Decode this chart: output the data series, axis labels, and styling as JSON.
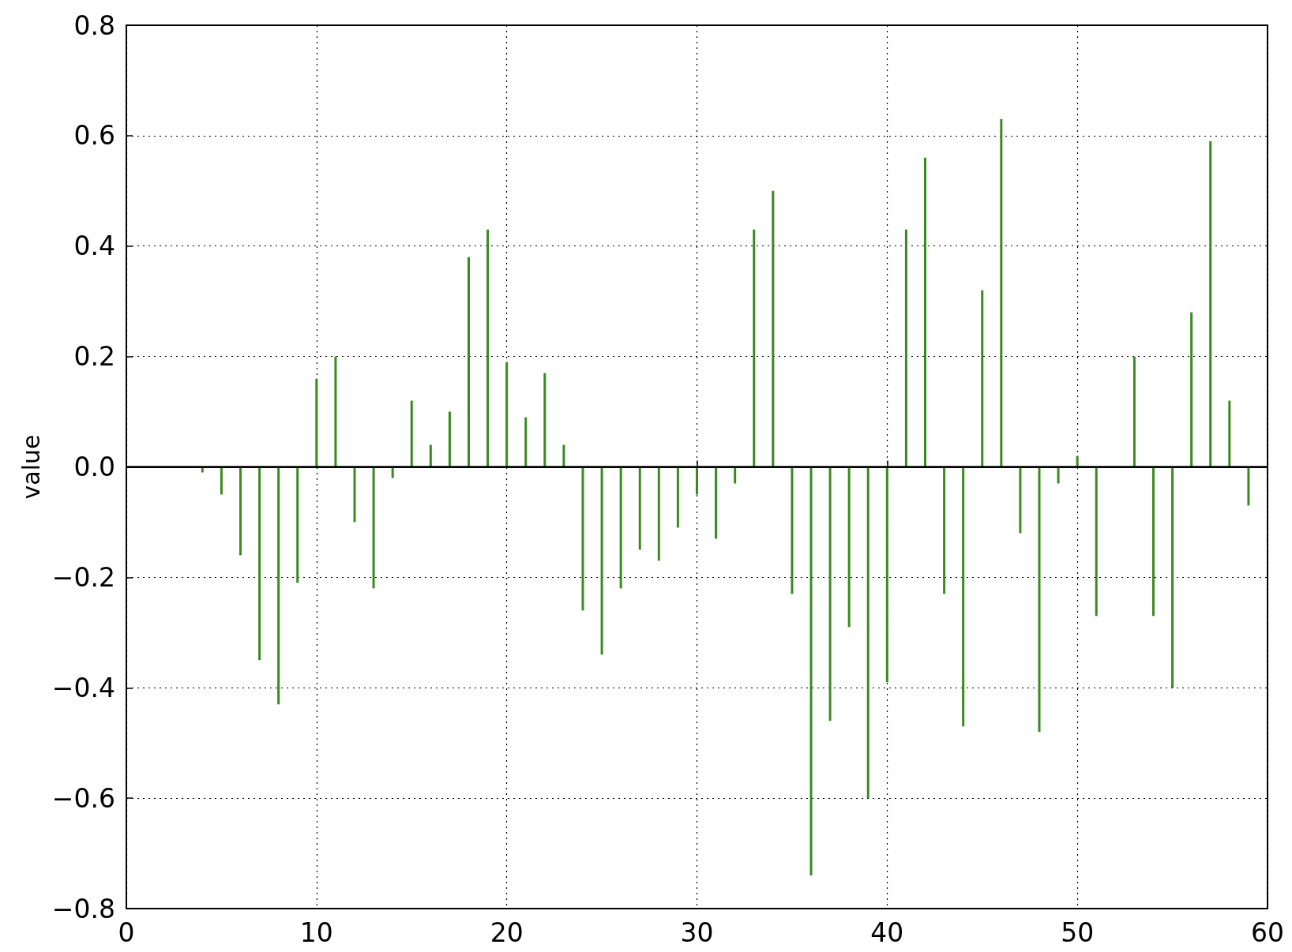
{
  "chart_data": {
    "type": "bar",
    "ylabel": "value",
    "x": [
      4,
      5,
      6,
      7,
      8,
      9,
      10,
      11,
      12,
      13,
      14,
      15,
      16,
      17,
      18,
      19,
      20,
      21,
      22,
      23,
      24,
      25,
      26,
      27,
      28,
      29,
      30,
      31,
      32,
      33,
      34,
      35,
      36,
      37,
      38,
      39,
      40,
      41,
      42,
      43,
      44,
      45,
      46,
      47,
      48,
      49,
      50,
      51,
      53,
      54,
      55,
      56,
      57,
      58,
      59
    ],
    "series": [
      {
        "color": "#3a8a20",
        "values": [
          -0.01,
          -0.05,
          -0.16,
          -0.35,
          -0.43,
          -0.21,
          0.16,
          0.2,
          -0.1,
          -0.22,
          -0.02,
          0.12,
          0.04,
          0.1,
          0.38,
          0.43,
          0.19,
          0.09,
          0.17,
          0.04,
          -0.26,
          -0.34,
          -0.22,
          -0.15,
          -0.17,
          -0.11,
          -0.05,
          -0.13,
          -0.03,
          0.43,
          0.5,
          -0.23,
          -0.74,
          -0.46,
          -0.29,
          -0.6,
          -0.39,
          0.43,
          0.56,
          -0.23,
          -0.47,
          0.32,
          0.63,
          -0.12,
          -0.48,
          -0.03,
          0.02,
          -0.27,
          0.2,
          -0.27,
          -0.4,
          0.28,
          0.59,
          0.12,
          -0.07
        ]
      }
    ],
    "xlim": [
      0,
      60
    ],
    "xticks": [
      0,
      10,
      20,
      30,
      40,
      50,
      60
    ],
    "ylim": [
      -0.8,
      0.8
    ],
    "yticks": [
      {
        "value": -0.8,
        "label": "−0.8"
      },
      {
        "value": -0.6,
        "label": "−0.6"
      },
      {
        "value": -0.4,
        "label": "−0.4"
      },
      {
        "value": -0.2,
        "label": "−0.2"
      },
      {
        "value": 0,
        "label": "0.0"
      },
      {
        "value": 0.2,
        "label": "0.2"
      },
      {
        "value": 0.4,
        "label": "0.4"
      },
      {
        "value": 0.6,
        "label": "0.6"
      },
      {
        "value": 0.8,
        "label": "0.8"
      }
    ],
    "ref_lines": [
      {
        "axis": "y",
        "value": 0,
        "color": "#000000",
        "line_style": "solid"
      }
    ],
    "grid": true
  }
}
